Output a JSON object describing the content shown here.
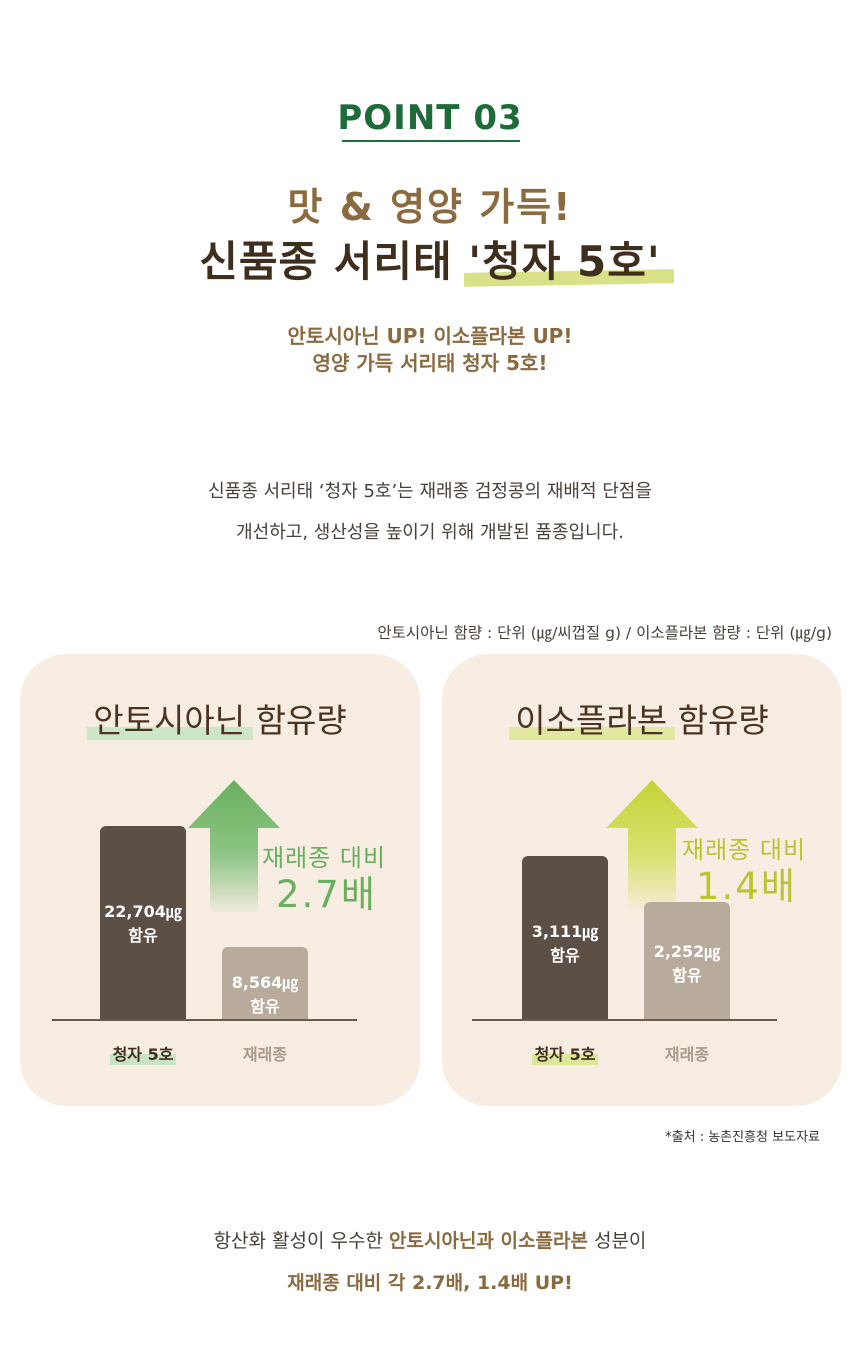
{
  "header": {
    "point_label": "POINT 03",
    "line1": "맛 & 영양 가득!",
    "line2_prefix": "신품종 서리태 ",
    "line2_highlight": "'청자 5호'",
    "tagline1": "안토시아닌 UP! 이소플라본 UP!",
    "tagline2": "영양 가득 서리태 청자 5호!"
  },
  "description": {
    "line1": "신품종 서리태 ‘청자 5호’는 재래종 검정콩의 재배적 단점을",
    "line2": "개선하고, 생산성을 높이기 위해 개발된 품종입니다."
  },
  "unit_note": "안토시아닌 함량 : 단위 (㎍/씨껍질 g) / 이소플라본 함량 : 단위 (㎍/g)",
  "colors": {
    "brand_green": "#1e6b3a",
    "gold_brown": "#8a6a3e",
    "dark_bar": "#5c5046",
    "light_bar": "#b9ab9c",
    "arrow_green": "#6aaf5e",
    "arrow_lime": "#c3d234",
    "panel_bg": "#f8ede3"
  },
  "charts": {
    "anthocyanin": {
      "title_highlight": "안토시아닌",
      "title_rest": " 함유량",
      "comparison_line1": "재래종 대비",
      "comparison_line2": "2.7배",
      "arrow_icon": "up-arrow-icon",
      "bar1_value": "22,704㎍",
      "bar1_suffix": "함유",
      "bar2_value": "8,564㎍",
      "bar2_suffix": "함유",
      "cat1": "청자 5호",
      "cat2": "재래종"
    },
    "isoflavone": {
      "title_highlight": "이소플라본",
      "title_rest": " 함유량",
      "comparison_line1": "재래종 대비",
      "comparison_line2": "1.4배",
      "arrow_icon": "up-arrow-icon",
      "bar1_value": "3,111㎍",
      "bar1_suffix": "함유",
      "bar2_value": "2,252㎍",
      "bar2_suffix": "함유",
      "cat1": "청자 5호",
      "cat2": "재래종"
    }
  },
  "chart_data": [
    {
      "type": "bar",
      "title": "안토시아닌 함유량",
      "categories": [
        "청자 5호",
        "재래종"
      ],
      "values": [
        22704,
        8564
      ],
      "ylabel": "",
      "ylim": [
        0,
        24000
      ]
    },
    {
      "type": "bar",
      "title": "이소플라본 함유량",
      "categories": [
        "청자 5호",
        "재래종"
      ],
      "values": [
        3111,
        2252
      ],
      "ylabel": "",
      "ylim": [
        0,
        3900
      ]
    }
  ],
  "source": "*출처 : 농촌진흥청 보도자료",
  "footer": {
    "line1_pre": "항산화 활성이 우수한 ",
    "line1_b1": "안토시아닌",
    "line1_mid": "과 ",
    "line1_b2": "이소플라본",
    "line1_post": " 성분이",
    "line2": "재래종 대비 각 2.7배, 1.4배 UP!"
  }
}
